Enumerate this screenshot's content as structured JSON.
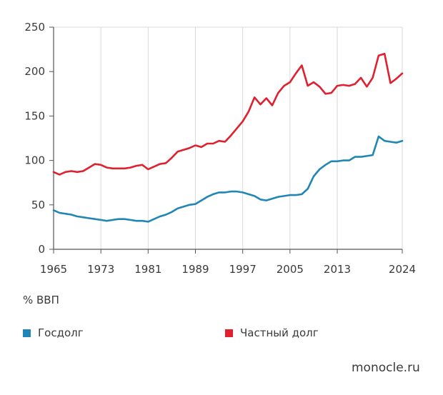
{
  "chart_data": {
    "type": "line",
    "title": "",
    "xlabel": "",
    "ylabel": "% ВВП",
    "xlim": [
      1965,
      2024
    ],
    "ylim": [
      0,
      250
    ],
    "x_ticks": [
      1965,
      1973,
      1981,
      1989,
      1997,
      2005,
      2013,
      2024
    ],
    "y_ticks": [
      0,
      50,
      100,
      150,
      200,
      250
    ],
    "grid": "vertical",
    "x": [
      1965,
      1966,
      1967,
      1968,
      1969,
      1970,
      1971,
      1972,
      1973,
      1974,
      1975,
      1976,
      1977,
      1978,
      1979,
      1980,
      1981,
      1982,
      1983,
      1984,
      1985,
      1986,
      1987,
      1988,
      1989,
      1990,
      1991,
      1992,
      1993,
      1994,
      1995,
      1996,
      1997,
      1998,
      1999,
      2000,
      2001,
      2002,
      2003,
      2004,
      2005,
      2006,
      2007,
      2008,
      2009,
      2010,
      2011,
      2012,
      2013,
      2014,
      2015,
      2016,
      2017,
      2018,
      2019,
      2020,
      2021,
      2022,
      2023,
      2024
    ],
    "series": [
      {
        "name": "Госдолг",
        "color": "#1f86b5",
        "values": [
          44,
          41,
          40,
          39,
          37,
          36,
          35,
          34,
          33,
          32,
          33,
          34,
          34,
          33,
          32,
          32,
          31,
          34,
          37,
          39,
          42,
          46,
          48,
          50,
          51,
          55,
          59,
          62,
          64,
          64,
          65,
          65,
          64,
          62,
          60,
          56,
          55,
          57,
          59,
          60,
          61,
          61,
          62,
          68,
          82,
          90,
          95,
          99,
          99,
          100,
          100,
          104,
          104,
          105,
          106,
          127,
          122,
          121,
          120,
          122
        ]
      },
      {
        "name": "Частный долг",
        "color": "#e0202e",
        "values": [
          87,
          84,
          87,
          88,
          87,
          88,
          92,
          96,
          95,
          92,
          91,
          91,
          91,
          92,
          94,
          95,
          90,
          93,
          96,
          97,
          103,
          110,
          112,
          114,
          117,
          115,
          119,
          119,
          122,
          121,
          128,
          136,
          144,
          155,
          171,
          163,
          170,
          162,
          176,
          184,
          188,
          198,
          207,
          184,
          188,
          183,
          175,
          176,
          184,
          185,
          184,
          186,
          193,
          183,
          193,
          218,
          220,
          187,
          192,
          198
        ]
      }
    ],
    "legend_position": "bottom"
  },
  "labels": {
    "unit": "% ВВП",
    "source": "monocle.ru"
  }
}
